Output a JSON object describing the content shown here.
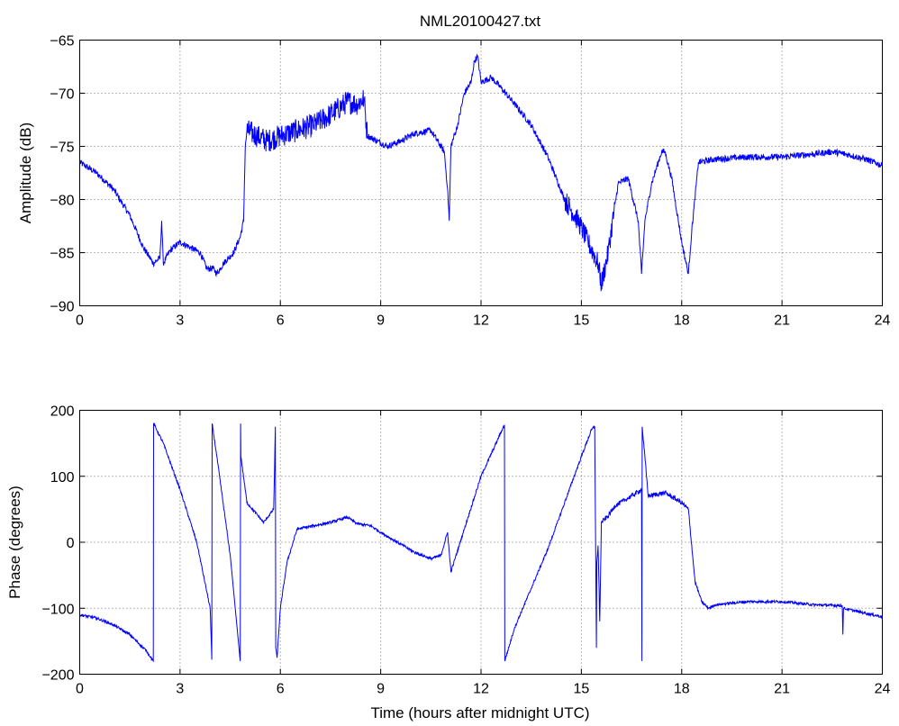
{
  "figure_title": "NML20100427.txt",
  "chart_data": [
    {
      "type": "line",
      "title": "NML20100427.txt",
      "xlabel": "",
      "ylabel": "Amplitude (dB)",
      "xlim": [
        0,
        24
      ],
      "ylim": [
        -90,
        -65
      ],
      "xticks": [
        0,
        3,
        6,
        9,
        12,
        15,
        18,
        21,
        24
      ],
      "yticks": [
        -90,
        -85,
        -80,
        -75,
        -70,
        -65
      ],
      "grid": true,
      "color": "#0000ff",
      "series": [
        {
          "x": [
            0,
            0.5,
            1.0,
            1.5,
            1.9,
            2.2,
            2.4,
            2.45,
            2.5,
            2.7,
            3.0,
            3.3,
            3.6,
            3.8,
            4.0,
            4.1,
            4.3,
            4.6,
            4.8,
            4.9,
            4.95,
            5.0,
            5.3,
            5.6,
            6.0,
            6.5,
            7.0,
            7.5,
            8.0,
            8.3,
            8.5,
            8.6,
            8.9,
            9.2,
            9.6,
            10.0,
            10.5,
            10.9,
            11.0,
            11.05,
            11.1,
            11.3,
            11.5,
            11.7,
            11.8,
            11.9,
            12.0,
            12.3,
            12.6,
            13.0,
            13.5,
            14.0,
            14.5,
            14.9,
            15.2,
            15.5,
            15.6,
            15.8,
            16.1,
            16.4,
            16.7,
            16.8,
            16.9,
            17.1,
            17.4,
            17.5,
            17.7,
            18.0,
            18.2,
            18.3,
            18.5,
            19.0,
            20.0,
            21.0,
            22.0,
            22.5,
            23.0,
            23.5,
            24.0
          ],
          "y": [
            -76.5,
            -77.5,
            -79,
            -81.5,
            -84.5,
            -86,
            -85.5,
            -82,
            -86,
            -84.8,
            -84,
            -84.5,
            -85,
            -86.5,
            -86.5,
            -87,
            -86,
            -85,
            -83.5,
            -82,
            -75,
            -73.5,
            -74,
            -74.5,
            -74,
            -73.5,
            -73,
            -72,
            -70.8,
            -71,
            -70.5,
            -74,
            -74.5,
            -75,
            -74.5,
            -73.8,
            -73.5,
            -75.5,
            -79,
            -82,
            -75,
            -73,
            -70,
            -69,
            -67,
            -66.5,
            -69,
            -68.5,
            -69.5,
            -71,
            -73,
            -76,
            -80,
            -82,
            -84,
            -86,
            -88,
            -85,
            -78.5,
            -78,
            -82,
            -87,
            -82,
            -78.5,
            -75.5,
            -75.5,
            -78,
            -84,
            -87,
            -83,
            -76.5,
            -76.2,
            -76,
            -76,
            -75.7,
            -75.5,
            -75.8,
            -76.2,
            -76.8
          ]
        }
      ]
    },
    {
      "type": "line",
      "title": "",
      "xlabel": "Time (hours after midnight UTC)",
      "ylabel": "Phase (degrees)",
      "xlim": [
        0,
        24
      ],
      "ylim": [
        -200,
        200
      ],
      "xticks": [
        0,
        3,
        6,
        9,
        12,
        15,
        18,
        21,
        24
      ],
      "yticks": [
        -200,
        -100,
        0,
        100,
        200
      ],
      "grid": true,
      "color": "#0000ff",
      "series": [
        {
          "x": [
            0,
            0.5,
            1.0,
            1.5,
            2.0,
            2.2,
            2.21,
            2.5,
            3.0,
            3.5,
            3.9,
            3.95,
            3.96,
            4.1,
            4.5,
            4.8,
            4.81,
            4.82,
            5.0,
            5.5,
            5.8,
            5.85,
            5.86,
            5.9,
            6.0,
            6.2,
            6.5,
            7.0,
            7.5,
            8.0,
            8.3,
            8.7,
            9.0,
            9.5,
            10.0,
            10.5,
            10.8,
            11.0,
            11.1,
            11.5,
            12.0,
            12.7,
            12.71,
            13.0,
            13.5,
            14.0,
            14.5,
            15.0,
            15.3,
            15.4,
            15.45,
            15.46,
            15.5,
            15.55,
            15.6,
            15.8,
            16.0,
            16.5,
            16.8,
            16.81,
            16.82,
            17.0,
            17.5,
            18.0,
            18.2,
            18.4,
            18.6,
            18.8,
            19.0,
            19.5,
            20.0,
            21.0,
            22.0,
            22.8,
            22.82,
            22.84,
            23.0,
            24.0
          ],
          "y": [
            -110,
            -115,
            -125,
            -140,
            -165,
            -180,
            180,
            150,
            80,
            0,
            -100,
            -178,
            180,
            130,
            -20,
            -180,
            180,
            130,
            60,
            30,
            50,
            175,
            -160,
            -175,
            -100,
            -30,
            20,
            25,
            30,
            38,
            28,
            25,
            15,
            0,
            -15,
            -25,
            -20,
            15,
            -45,
            20,
            100,
            178,
            -180,
            -130,
            -70,
            -10,
            60,
            130,
            170,
            175,
            -160,
            -30,
            -5,
            -120,
            30,
            40,
            55,
            70,
            80,
            -180,
            175,
            70,
            75,
            60,
            50,
            -60,
            -90,
            -100,
            -95,
            -92,
            -90,
            -90,
            -95,
            -96,
            -140,
            -100,
            -102,
            -113
          ]
        }
      ]
    }
  ]
}
